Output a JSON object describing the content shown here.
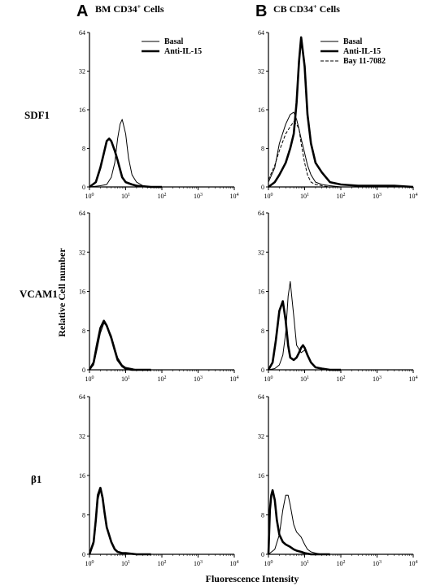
{
  "figure": {
    "panel_labels": [
      "A",
      "B"
    ],
    "column_titles": [
      {
        "text": "BM CD34",
        "sup": "+",
        "suffix": " Cells"
      },
      {
        "text": "CB CD34",
        "sup": "+",
        "suffix": " Cells"
      }
    ],
    "row_labels": [
      "SDF1",
      "VCAM1",
      "β1"
    ],
    "ylabel": "Relative Cell number",
    "xlabel": "Fluorescence Intensity"
  },
  "chart_data": [
    {
      "type": "line",
      "panel": "A",
      "row": "SDF1",
      "x_scale": "log",
      "xlim": [
        1,
        10000
      ],
      "ylim": [
        0,
        64
      ],
      "yticks": [
        "0",
        "8",
        "16",
        "32",
        "64"
      ],
      "xticks": [
        {
          "base": "10",
          "exp": "0"
        },
        {
          "base": "10",
          "exp": "1"
        },
        {
          "base": "10",
          "exp": "2"
        },
        {
          "base": "10",
          "exp": "3"
        },
        {
          "base": "10",
          "exp": "4"
        }
      ],
      "legend": [
        "Basal",
        "Anti-IL-15"
      ],
      "series": [
        {
          "name": "Basal",
          "style": "thin",
          "x": [
            1,
            2,
            3,
            4,
            5,
            6,
            7,
            8,
            10,
            12,
            15,
            20,
            30,
            50,
            100
          ],
          "y": [
            0,
            0.5,
            1,
            4,
            10,
            20,
            26,
            28,
            22,
            12,
            5,
            2,
            0.5,
            0,
            0
          ]
        },
        {
          "name": "Anti-IL-15",
          "style": "thick",
          "x": [
            1,
            1.5,
            2,
            2.5,
            3,
            3.5,
            4,
            5,
            6,
            8,
            10,
            15,
            20,
            50,
            100
          ],
          "y": [
            0,
            2,
            8,
            14,
            19,
            20,
            19,
            15,
            11,
            4,
            2,
            1,
            0.5,
            0,
            0
          ]
        }
      ]
    },
    {
      "type": "line",
      "panel": "B",
      "row": "SDF1",
      "x_scale": "log",
      "xlim": [
        1,
        10000
      ],
      "ylim": [
        0,
        64
      ],
      "yticks": [
        "0",
        "8",
        "16",
        "32",
        "64"
      ],
      "xticks": [
        {
          "base": "10",
          "exp": "0"
        },
        {
          "base": "10",
          "exp": "1"
        },
        {
          "base": "10",
          "exp": "2"
        },
        {
          "base": "10",
          "exp": "3"
        },
        {
          "base": "10",
          "exp": "4"
        }
      ],
      "legend": [
        "Basal",
        "Anti-IL-15",
        "Bay 11-7082"
      ],
      "series": [
        {
          "name": "Basal",
          "style": "thin",
          "x": [
            1,
            1.5,
            2,
            3,
            4,
            5,
            6,
            7,
            8,
            10,
            12,
            15,
            20,
            30,
            50,
            100
          ],
          "y": [
            2,
            8,
            18,
            26,
            30,
            31,
            28,
            24,
            20,
            14,
            9,
            5,
            2,
            1,
            0.5,
            0
          ]
        },
        {
          "name": "Anti-IL-15",
          "style": "thick",
          "x": [
            1,
            1.5,
            2,
            3,
            4,
            5,
            6,
            7,
            8,
            10,
            12,
            15,
            20,
            30,
            50,
            100,
            300,
            1000,
            3000,
            10000
          ],
          "y": [
            0,
            2,
            5,
            10,
            16,
            22,
            35,
            52,
            62,
            50,
            30,
            18,
            10,
            6,
            2,
            1,
            0.5,
            0.5,
            0.5,
            0
          ]
        },
        {
          "name": "Bay 11-7082",
          "style": "dashed",
          "x": [
            1,
            1.5,
            2,
            3,
            4,
            5,
            6,
            7,
            8,
            10,
            12,
            15,
            20,
            30,
            50,
            100
          ],
          "y": [
            3,
            9,
            15,
            22,
            25,
            27,
            26,
            24,
            18,
            10,
            5,
            2,
            1,
            0.5,
            0,
            0
          ]
        }
      ]
    },
    {
      "type": "line",
      "panel": "A",
      "row": "VCAM1",
      "x_scale": "log",
      "xlim": [
        1,
        10000
      ],
      "ylim": [
        0,
        64
      ],
      "yticks": [
        "0",
        "8",
        "16",
        "32",
        "64"
      ],
      "xticks": [
        {
          "base": "10",
          "exp": "0"
        },
        {
          "base": "10",
          "exp": "1"
        },
        {
          "base": "10",
          "exp": "2"
        },
        {
          "base": "10",
          "exp": "3"
        },
        {
          "base": "10",
          "exp": "4"
        }
      ],
      "series": [
        {
          "name": "Basal",
          "style": "thin",
          "x": [
            1,
            1.3,
            1.6,
            2,
            2.5,
            3,
            4,
            5,
            6,
            8,
            10,
            15,
            20,
            50
          ],
          "y": [
            0,
            2,
            8,
            15,
            19,
            18,
            14,
            9,
            5,
            2,
            1,
            0.5,
            0,
            0
          ]
        },
        {
          "name": "Anti-IL-15",
          "style": "thick",
          "x": [
            1,
            1.3,
            1.6,
            2,
            2.5,
            3,
            4,
            5,
            6,
            8,
            10,
            15,
            20,
            50
          ],
          "y": [
            0,
            3,
            10,
            17,
            20,
            18,
            13,
            8,
            4,
            1.5,
            0.5,
            0,
            0,
            0
          ]
        }
      ]
    },
    {
      "type": "line",
      "panel": "B",
      "row": "VCAM1",
      "x_scale": "log",
      "xlim": [
        1,
        10000
      ],
      "ylim": [
        0,
        64
      ],
      "yticks": [
        "0",
        "8",
        "16",
        "32",
        "64"
      ],
      "xticks": [
        {
          "base": "10",
          "exp": "0"
        },
        {
          "base": "10",
          "exp": "1"
        },
        {
          "base": "10",
          "exp": "2"
        },
        {
          "base": "10",
          "exp": "3"
        },
        {
          "base": "10",
          "exp": "4"
        }
      ],
      "series": [
        {
          "name": "Basal",
          "style": "thin",
          "x": [
            1,
            1.5,
            2,
            2.5,
            3,
            3.5,
            4,
            5,
            6,
            8,
            10,
            12,
            15,
            20,
            30,
            50
          ],
          "y": [
            0,
            0.5,
            2,
            6,
            15,
            30,
            36,
            22,
            10,
            7,
            8,
            6,
            3,
            1,
            0.5,
            0
          ]
        },
        {
          "name": "Anti-IL-15",
          "style": "thick",
          "x": [
            1,
            1.3,
            1.6,
            2,
            2.5,
            3,
            3.5,
            4,
            5,
            6,
            7,
            8,
            9,
            10,
            12,
            15,
            20,
            30,
            50,
            100
          ],
          "y": [
            0,
            3,
            12,
            24,
            28,
            20,
            10,
            5,
            4,
            5,
            7,
            9,
            10,
            9,
            6,
            3,
            1,
            0.5,
            0,
            0
          ]
        }
      ]
    },
    {
      "type": "line",
      "panel": "A",
      "row": "β1",
      "x_scale": "log",
      "xlim": [
        1,
        10000
      ],
      "ylim": [
        0,
        64
      ],
      "yticks": [
        "0",
        "8",
        "16",
        "32",
        "64"
      ],
      "xticks": [
        {
          "base": "10",
          "exp": "0"
        },
        {
          "base": "10",
          "exp": "1"
        },
        {
          "base": "10",
          "exp": "2"
        },
        {
          "base": "10",
          "exp": "3"
        },
        {
          "base": "10",
          "exp": "4"
        }
      ],
      "series": [
        {
          "name": "Basal",
          "style": "thin",
          "x": [
            1,
            1.3,
            1.5,
            1.7,
            2,
            2.3,
            2.6,
            3,
            4,
            5,
            6,
            8,
            10,
            20,
            50
          ],
          "y": [
            0,
            4,
            12,
            22,
            26,
            22,
            16,
            11,
            5,
            2,
            1,
            0.5,
            0,
            0,
            0
          ]
        },
        {
          "name": "Anti-IL-15",
          "style": "thick",
          "x": [
            1,
            1.3,
            1.5,
            1.7,
            2,
            2.3,
            2.6,
            3,
            4,
            5,
            6,
            8,
            10,
            20,
            50
          ],
          "y": [
            0,
            5,
            14,
            24,
            27,
            23,
            17,
            11,
            5,
            2,
            1,
            0.5,
            0.5,
            0,
            0
          ]
        }
      ]
    },
    {
      "type": "line",
      "panel": "B",
      "row": "β1",
      "x_scale": "log",
      "xlim": [
        1,
        10000
      ],
      "ylim": [
        0,
        64
      ],
      "yticks": [
        "0",
        "8",
        "16",
        "32",
        "64"
      ],
      "xticks": [
        {
          "base": "10",
          "exp": "0"
        },
        {
          "base": "10",
          "exp": "1"
        },
        {
          "base": "10",
          "exp": "2"
        },
        {
          "base": "10",
          "exp": "3"
        },
        {
          "base": "10",
          "exp": "4"
        }
      ],
      "series": [
        {
          "name": "Basal",
          "style": "thin",
          "x": [
            1,
            1.5,
            2,
            2.5,
            3,
            3.5,
            4,
            5,
            6,
            7,
            8,
            10,
            12,
            15,
            20,
            30,
            50
          ],
          "y": [
            0,
            2,
            8,
            18,
            24,
            24,
            20,
            12,
            9,
            8,
            7,
            4,
            2,
            1,
            0.5,
            0,
            0
          ]
        },
        {
          "name": "Anti-IL-15",
          "style": "thick",
          "x": [
            1,
            1.1,
            1.2,
            1.3,
            1.5,
            1.7,
            2,
            2.5,
            3,
            4,
            5,
            6,
            8,
            10,
            15,
            20,
            50
          ],
          "y": [
            0,
            18,
            24,
            26,
            22,
            14,
            8,
            5,
            4,
            3,
            2,
            1.5,
            1,
            0.5,
            0,
            0,
            0
          ]
        }
      ]
    }
  ]
}
